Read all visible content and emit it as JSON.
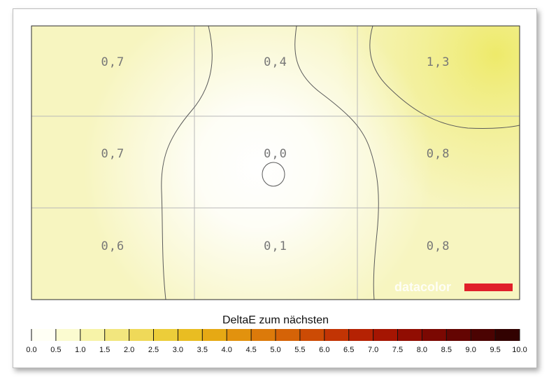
{
  "chart_data": {
    "type": "heatmap",
    "rows": 3,
    "cols": 3,
    "values": [
      [
        "0,7",
        "0,4",
        "1,3"
      ],
      [
        "0,7",
        "0,0",
        "0,8"
      ],
      [
        "0,6",
        "0,1",
        "0,8"
      ]
    ],
    "numeric_values": [
      [
        0.7,
        0.4,
        1.3
      ],
      [
        0.7,
        0.0,
        0.8
      ],
      [
        0.6,
        0.1,
        0.8
      ]
    ],
    "colorbar": {
      "title": "DeltaE zum nächsten",
      "range": [
        0,
        10
      ],
      "tick_labels": [
        "0.0",
        "0.5",
        "1.0",
        "1.5",
        "2.0",
        "2.5",
        "3.0",
        "3.5",
        "4.0",
        "4.5",
        "5.0",
        "5.5",
        "6.0",
        "6.5",
        "7.0",
        "7.5",
        "8.0",
        "8.5",
        "9.0",
        "9.5",
        "10.0"
      ],
      "colors": [
        "#fffff5",
        "#fbfbd0",
        "#f7f3a8",
        "#f2e67e",
        "#efd959",
        "#eccd3a",
        "#e9bd22",
        "#e6a914",
        "#e2920e",
        "#dc7a0a",
        "#d56307",
        "#cc4b05",
        "#c23404",
        "#b52203",
        "#a51502",
        "#910d02",
        "#7b0802",
        "#640502",
        "#4b0302",
        "#320201"
      ]
    },
    "grid": true,
    "contour_lines": true
  },
  "branding": {
    "logo_text": "datacolor",
    "accent_color": "#e0202a"
  }
}
